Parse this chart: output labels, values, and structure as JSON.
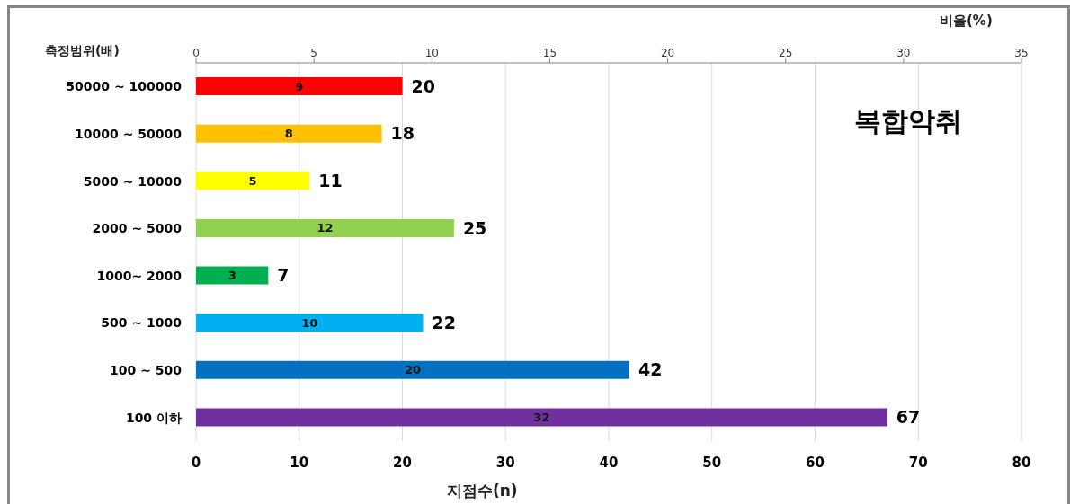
{
  "chart_data": {
    "type": "bar",
    "orientation": "horizontal",
    "title": "복합악취",
    "ylabel": "측정범위(배)",
    "xlabel": "지점수(n)",
    "x2label": "비율(%)",
    "categories": [
      "50000 ~ 100000",
      "10000 ~ 50000",
      "5000 ~ 10000",
      "2000 ~ 5000",
      "1000~ 2000",
      "500 ~ 1000",
      "100 ~ 500",
      "100 이하"
    ],
    "values": [
      20,
      18,
      11,
      25,
      7,
      22,
      42,
      67
    ],
    "colors": [
      "#ff0000",
      "#ffc000",
      "#ffff00",
      "#92d050",
      "#00b050",
      "#00b0f0",
      "#0070c0",
      "#7030a0"
    ],
    "data_labels": true,
    "annotations": [
      "9",
      "8",
      "5",
      "12",
      "3",
      "10",
      "20",
      "32"
    ],
    "xlim": [
      0,
      80
    ],
    "xticks": [
      0,
      10,
      20,
      30,
      40,
      50,
      60,
      70,
      80
    ],
    "x2lim": [
      0,
      35
    ],
    "x2ticks": [
      0,
      5,
      10,
      15,
      20,
      25,
      30,
      35
    ],
    "grid": "x",
    "legend": false
  }
}
